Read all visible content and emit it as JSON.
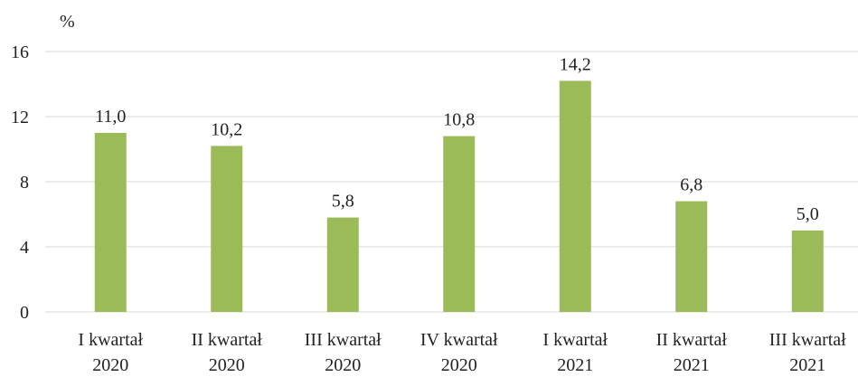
{
  "chart_data": {
    "type": "bar",
    "y_unit": "%",
    "categories": [
      "I kwartał\n2020",
      "II kwartał\n2020",
      "III kwartał\n2020",
      "IV kwartał\n2020",
      "I kwartał\n2021",
      "II kwartał\n2021",
      "III kwartał\n2021"
    ],
    "values": [
      11.0,
      10.2,
      5.8,
      10.8,
      14.2,
      6.8,
      5.0
    ],
    "value_labels": [
      "11,0",
      "10,2",
      "5,8",
      "10,8",
      "14,2",
      "6,8",
      "5,0"
    ],
    "color": "#9bbb59",
    "ylim": [
      0,
      16
    ],
    "yticks": [
      0,
      4,
      8,
      12,
      16
    ],
    "grid": true
  }
}
